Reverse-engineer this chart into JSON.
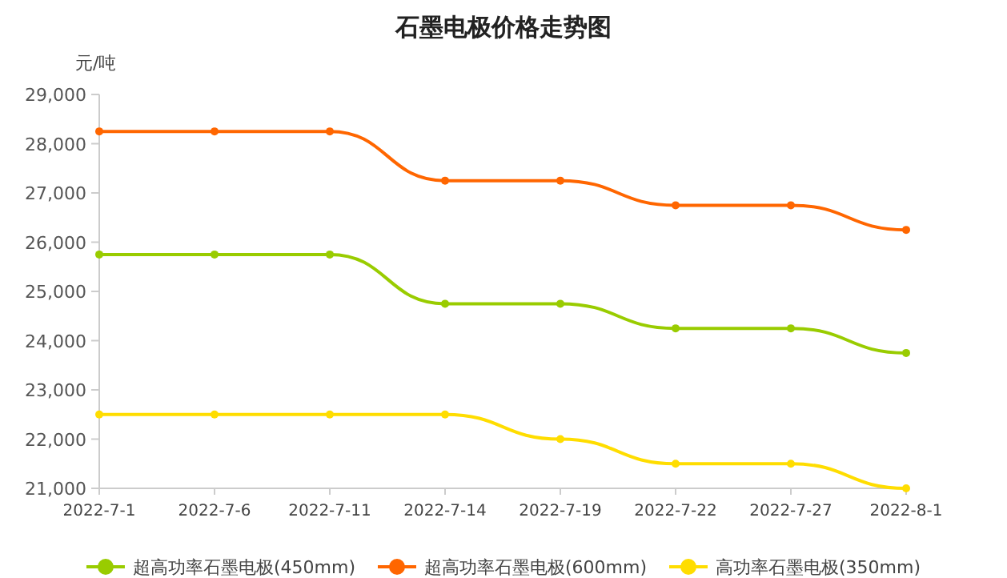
{
  "chart_data": {
    "type": "line",
    "title": "石墨电极价格走势图",
    "ylabel": "元/吨",
    "categories": [
      "2022-7-1",
      "2022-7-6",
      "2022-7-11",
      "2022-7-14",
      "2022-7-19",
      "2022-7-22",
      "2022-7-27",
      "2022-8-1"
    ],
    "series": [
      {
        "name": "超高功率石墨电极(450mm)",
        "color": "#99cc00",
        "values": [
          25750,
          25750,
          25750,
          24750,
          24750,
          24250,
          24250,
          23750
        ]
      },
      {
        "name": "超高功率石墨电极(600mm)",
        "color": "#ff6600",
        "values": [
          28250,
          28250,
          28250,
          27250,
          27250,
          26750,
          26750,
          26250
        ]
      },
      {
        "name": "高功率石墨电极(350mm)",
        "color": "#ffdd00",
        "values": [
          22500,
          22500,
          22500,
          22500,
          22000,
          21500,
          21500,
          21000
        ]
      }
    ],
    "ylim": [
      21000,
      29000
    ],
    "yticks": [
      {
        "value": 21000,
        "label": "21,000"
      },
      {
        "value": 22000,
        "label": "22,000"
      },
      {
        "value": 23000,
        "label": "23,000"
      },
      {
        "value": 24000,
        "label": "24,000"
      },
      {
        "value": 25000,
        "label": "25,000"
      },
      {
        "value": 26000,
        "label": "26,000"
      },
      {
        "value": 27000,
        "label": "27,000"
      },
      {
        "value": 28000,
        "label": "28,000"
      },
      {
        "value": 29000,
        "label": "29,000"
      }
    ],
    "grid": false,
    "legend": "bottom",
    "marker": "circle",
    "line_style": "solid"
  }
}
